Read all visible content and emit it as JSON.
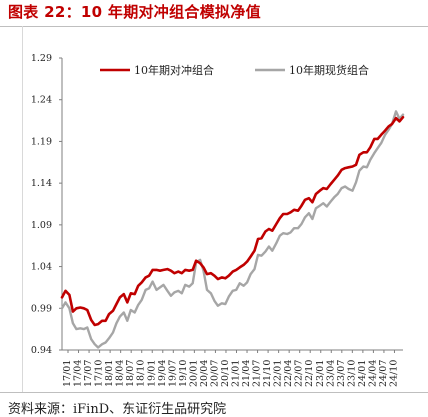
{
  "figure": {
    "title": "图表 22：10 年期对冲组合模拟净值",
    "source": "资料来源：iFinD、东证衍生品研究院"
  },
  "chart_data": {
    "type": "line",
    "title": "",
    "xlabel": "",
    "ylabel": "",
    "ylim": [
      0.94,
      1.29
    ],
    "yticks": [
      "1.29",
      "1.24",
      "1.19",
      "1.14",
      "1.09",
      "1.04",
      "0.99",
      "0.94"
    ],
    "xticks": [
      "17/01",
      "17/04",
      "17/07",
      "17/10",
      "18/01",
      "18/04",
      "18/07",
      "18/10",
      "19/01",
      "19/04",
      "19/07",
      "19/10",
      "20/01",
      "20/04",
      "20/07",
      "20/10",
      "21/01",
      "21/04",
      "21/07",
      "21/10",
      "22/01",
      "22/04",
      "22/07",
      "22/10",
      "23/01",
      "23/04",
      "23/07",
      "23/10",
      "24/01",
      "24/04",
      "24/07",
      "24/10"
    ],
    "legend_position": "top",
    "grid": false,
    "series": [
      {
        "name": "10年期对冲组合",
        "color": "#c00000",
        "x": [
          2017.0,
          2017.08,
          2017.17,
          2017.25,
          2017.33,
          2017.42,
          2017.5,
          2017.58,
          2017.67,
          2017.75,
          2017.83,
          2017.92,
          2018.0,
          2018.08,
          2018.17,
          2018.25,
          2018.33,
          2018.42,
          2018.5,
          2018.58,
          2018.67,
          2018.75,
          2018.83,
          2018.92,
          2019.0,
          2019.08,
          2019.17,
          2019.25,
          2019.33,
          2019.42,
          2019.5,
          2019.58,
          2019.67,
          2019.75,
          2019.83,
          2019.92,
          2020.0,
          2020.08,
          2020.17,
          2020.25,
          2020.33,
          2020.42,
          2020.5,
          2020.58,
          2020.67,
          2020.75,
          2020.83,
          2020.92,
          2021.0,
          2021.08,
          2021.17,
          2021.25,
          2021.33,
          2021.42,
          2021.5,
          2021.58,
          2021.67,
          2021.75,
          2021.83,
          2021.92,
          2022.0,
          2022.08,
          2022.17,
          2022.25,
          2022.33,
          2022.42,
          2022.5,
          2022.58,
          2022.67,
          2022.75,
          2022.83,
          2022.92,
          2023.0,
          2023.08,
          2023.17,
          2023.25,
          2023.33,
          2023.42,
          2023.5,
          2023.58,
          2023.67,
          2023.75,
          2023.83,
          2023.92,
          2024.0,
          2024.08,
          2024.17,
          2024.25,
          2024.33,
          2024.42,
          2024.5,
          2024.58,
          2024.67,
          2024.75,
          2024.83
        ],
        "values": [
          1.003,
          1.011,
          1.006,
          0.986,
          0.99,
          0.991,
          0.99,
          0.988,
          0.976,
          0.97,
          0.971,
          0.975,
          0.975,
          0.983,
          0.987,
          0.995,
          1.003,
          1.007,
          0.997,
          1.008,
          1.007,
          1.017,
          1.021,
          1.027,
          1.029,
          1.036,
          1.036,
          1.035,
          1.036,
          1.037,
          1.035,
          1.032,
          1.034,
          1.032,
          1.036,
          1.035,
          1.036,
          1.047,
          1.044,
          1.039,
          1.031,
          1.032,
          1.029,
          1.025,
          1.027,
          1.026,
          1.029,
          1.034,
          1.036,
          1.039,
          1.042,
          1.046,
          1.052,
          1.059,
          1.073,
          1.074,
          1.082,
          1.085,
          1.083,
          1.091,
          1.098,
          1.103,
          1.103,
          1.105,
          1.108,
          1.107,
          1.113,
          1.12,
          1.122,
          1.117,
          1.127,
          1.131,
          1.134,
          1.133,
          1.139,
          1.144,
          1.149,
          1.156,
          1.158,
          1.159,
          1.16,
          1.162,
          1.174,
          1.177,
          1.177,
          1.183,
          1.193,
          1.193,
          1.198,
          1.203,
          1.208,
          1.211,
          1.218,
          1.214,
          1.219
        ]
      },
      {
        "name": "10年期现货组合",
        "color": "#a6a6a6",
        "x": [
          2017.0,
          2017.08,
          2017.17,
          2017.25,
          2017.33,
          2017.42,
          2017.5,
          2017.58,
          2017.67,
          2017.75,
          2017.83,
          2017.92,
          2018.0,
          2018.08,
          2018.17,
          2018.25,
          2018.33,
          2018.42,
          2018.5,
          2018.58,
          2018.67,
          2018.75,
          2018.83,
          2018.92,
          2019.0,
          2019.08,
          2019.17,
          2019.25,
          2019.33,
          2019.42,
          2019.5,
          2019.58,
          2019.67,
          2019.75,
          2019.83,
          2019.92,
          2020.0,
          2020.08,
          2020.17,
          2020.25,
          2020.33,
          2020.42,
          2020.5,
          2020.58,
          2020.67,
          2020.75,
          2020.83,
          2020.92,
          2021.0,
          2021.08,
          2021.17,
          2021.25,
          2021.33,
          2021.42,
          2021.5,
          2021.58,
          2021.67,
          2021.75,
          2021.83,
          2021.92,
          2022.0,
          2022.08,
          2022.17,
          2022.25,
          2022.33,
          2022.42,
          2022.5,
          2022.58,
          2022.67,
          2022.75,
          2022.83,
          2022.92,
          2023.0,
          2023.08,
          2023.17,
          2023.25,
          2023.33,
          2023.42,
          2023.5,
          2023.58,
          2023.67,
          2023.75,
          2023.83,
          2023.92,
          2024.0,
          2024.08,
          2024.17,
          2024.25,
          2024.33,
          2024.42,
          2024.5,
          2024.58,
          2024.67,
          2024.75,
          2024.83
        ],
        "values": [
          0.99,
          0.997,
          0.99,
          0.972,
          0.965,
          0.966,
          0.965,
          0.967,
          0.953,
          0.947,
          0.943,
          0.947,
          0.949,
          0.954,
          0.961,
          0.972,
          0.98,
          0.985,
          0.975,
          0.988,
          0.985,
          0.994,
          1.0,
          1.012,
          1.014,
          1.022,
          1.012,
          1.015,
          1.018,
          1.011,
          1.005,
          1.009,
          1.011,
          1.008,
          1.018,
          1.016,
          1.02,
          1.045,
          1.048,
          1.035,
          1.012,
          1.008,
          0.999,
          0.993,
          0.996,
          0.995,
          1.004,
          1.011,
          1.012,
          1.02,
          1.017,
          1.021,
          1.031,
          1.037,
          1.054,
          1.053,
          1.058,
          1.064,
          1.059,
          1.068,
          1.077,
          1.08,
          1.079,
          1.081,
          1.086,
          1.086,
          1.091,
          1.099,
          1.104,
          1.097,
          1.11,
          1.113,
          1.116,
          1.112,
          1.118,
          1.123,
          1.127,
          1.134,
          1.136,
          1.133,
          1.131,
          1.141,
          1.155,
          1.16,
          1.159,
          1.168,
          1.176,
          1.182,
          1.188,
          1.198,
          1.204,
          1.211,
          1.226,
          1.217,
          1.222
        ]
      }
    ]
  }
}
